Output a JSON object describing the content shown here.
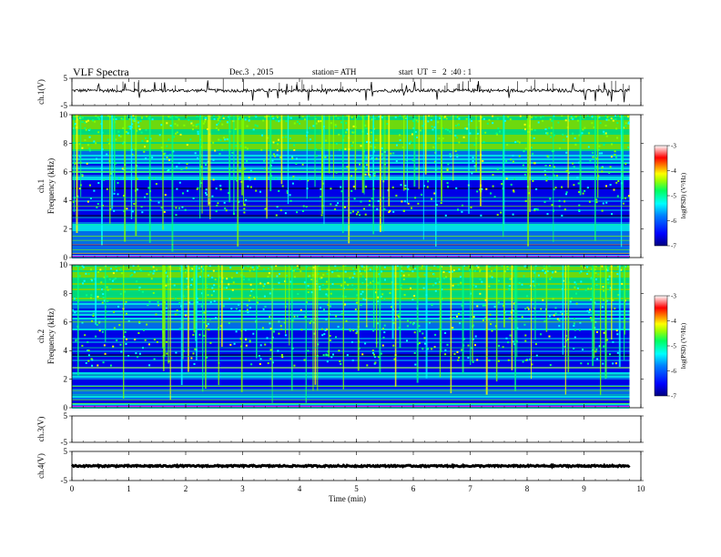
{
  "header": {
    "title": "VLF  Spectra",
    "date": "Dec.3  , 2015",
    "station": "station= ATH",
    "start": "start  UT  =   2  :40 : 1"
  },
  "chart_data": [
    {
      "id": "ch1-waveform",
      "type": "line",
      "ylabel": "ch.1(V)",
      "ylim": [
        -5,
        5
      ],
      "yticks": [
        "5",
        "-5"
      ],
      "xlim": [
        0,
        10
      ],
      "data_extent_min": 9.8,
      "baseline_v": 0.5,
      "color": "#000000"
    },
    {
      "id": "ch1-spectrogram",
      "type": "heatmap",
      "panel_label": "ch.1",
      "ylabel": "Frequency (kHz)",
      "ylim": [
        0,
        10
      ],
      "yticks": [
        "0",
        "2",
        "4",
        "6",
        "8",
        "10"
      ],
      "xlim": [
        0,
        10
      ],
      "data_extent_min": 9.8,
      "colorbar": {
        "label": "log(PSD) (V²/Hz)",
        "range": [
          -7,
          -3
        ],
        "ticks": [
          "-3",
          "-4",
          "-5",
          "-6",
          "-7"
        ]
      }
    },
    {
      "id": "ch2-spectrogram",
      "type": "heatmap",
      "panel_label": "ch.2",
      "ylabel": "Frequency (kHz)",
      "ylim": [
        0,
        10
      ],
      "yticks": [
        "0",
        "2",
        "4",
        "6",
        "8",
        "10"
      ],
      "xlim": [
        0,
        10
      ],
      "data_extent_min": 9.8,
      "colorbar": {
        "label": "log(PSD) (V²/Hz)",
        "range": [
          -7,
          -3
        ],
        "ticks": [
          "-3",
          "-4",
          "-5",
          "-6",
          "-7"
        ]
      }
    },
    {
      "id": "ch3-waveform",
      "type": "line",
      "ylabel": "ch.3(V)",
      "ylim": [
        -5,
        5
      ],
      "yticks": [
        "5",
        "-5"
      ],
      "xlim": [
        0,
        10
      ],
      "trace": "none"
    },
    {
      "id": "ch4-waveform",
      "type": "line",
      "ylabel": "ch.4(V)",
      "ylim": [
        -5,
        5
      ],
      "yticks": [
        "5",
        "-5"
      ],
      "xlim": [
        0,
        10
      ],
      "data_extent_min": 9.8,
      "baseline_v": 0.0,
      "color": "#000000"
    }
  ],
  "xaxis": {
    "label": "Time  (min)",
    "ticks": [
      "0",
      "1",
      "2",
      "3",
      "4",
      "5",
      "6",
      "7",
      "8",
      "9",
      "10"
    ]
  },
  "colors": {
    "colormap": [
      "#000080",
      "#0000ff",
      "#0080ff",
      "#00ffff",
      "#00ff80",
      "#80ff00",
      "#ffff00",
      "#ff8000",
      "#ff0000",
      "#ffffff"
    ]
  }
}
